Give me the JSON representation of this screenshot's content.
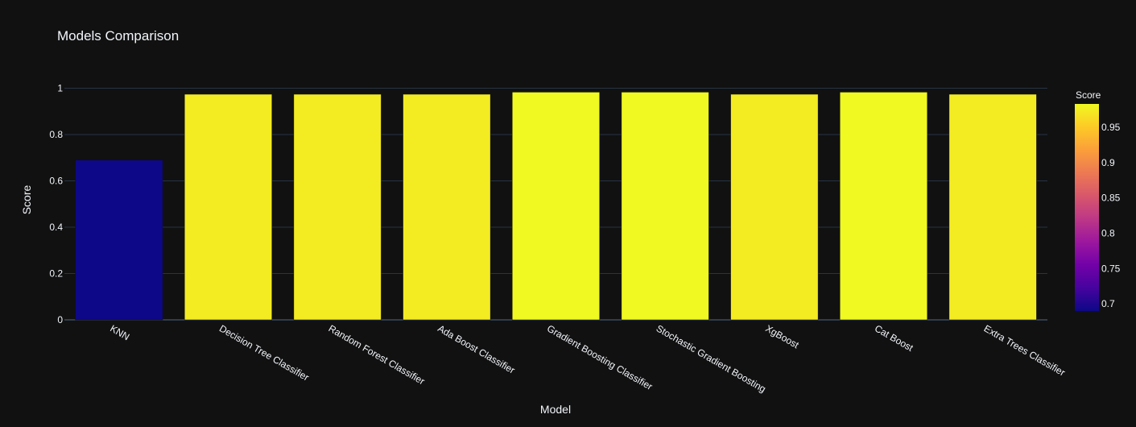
{
  "chart_data": {
    "type": "bar",
    "title": "Models Comparison",
    "xlabel": "Model",
    "ylabel": "Score",
    "categories": [
      "KNN",
      "Decision Tree Classifier",
      "Random Forest Classifier",
      "Ada Boost Classifier",
      "Gradient Boosting Classifier",
      "Stochastic Gradient Boosting",
      "XgBoost",
      "Cat Boost",
      "Extra Trees Classifier"
    ],
    "values": [
      0.69,
      0.974,
      0.974,
      0.974,
      0.983,
      0.983,
      0.974,
      0.983,
      0.974
    ],
    "ylim": [
      0,
      1
    ],
    "yticks": [
      0,
      0.2,
      0.4,
      0.6,
      0.8,
      1
    ],
    "ytick_labels": [
      "0",
      "0.2",
      "0.4",
      "0.6",
      "0.8",
      "1"
    ],
    "grid": true,
    "colorbar": {
      "title": "Score",
      "range": [
        0.69,
        0.983
      ],
      "ticks": [
        0.7,
        0.75,
        0.8,
        0.85,
        0.9,
        0.95
      ],
      "tick_labels": [
        "0.7",
        "0.75",
        "0.8",
        "0.85",
        "0.9",
        "0.95"
      ],
      "colorscale": [
        "#0d0887",
        "#46039f",
        "#7201a8",
        "#9c179e",
        "#bd3786",
        "#d8576b",
        "#ed7953",
        "#fb9f3a",
        "#fdca26",
        "#f0f921"
      ]
    },
    "colors": {
      "background": "#111111",
      "grid": "#283442",
      "text": "#f2f5fa"
    }
  }
}
